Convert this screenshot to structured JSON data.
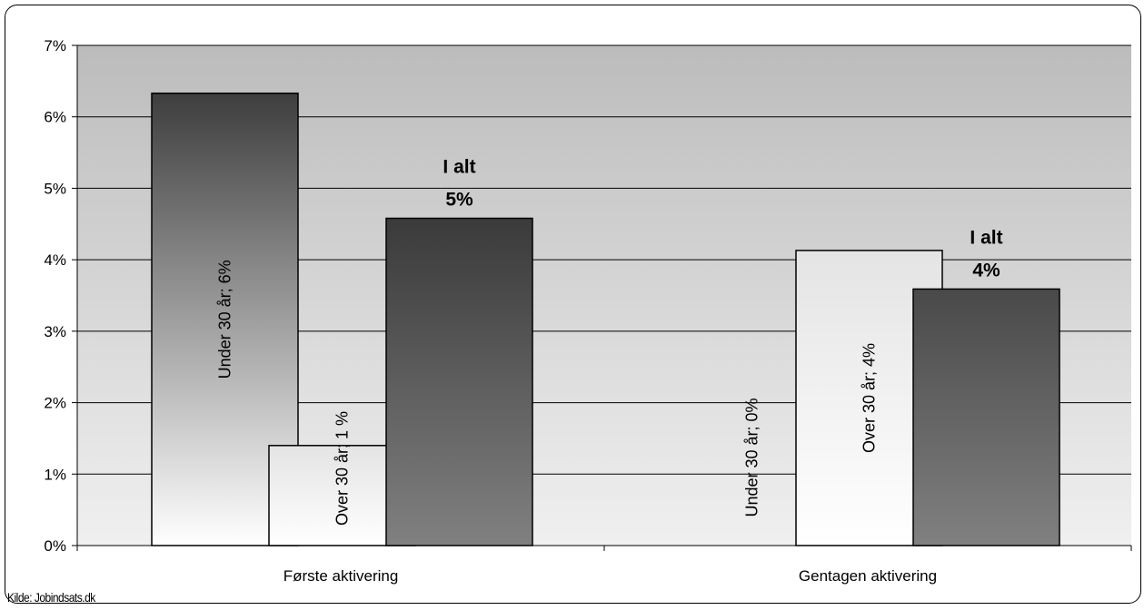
{
  "chart_data": {
    "type": "bar",
    "categories": [
      "Første aktivering",
      "Gentagen aktivering"
    ],
    "y_ticks": [
      "0%",
      "1%",
      "2%",
      "3%",
      "4%",
      "5%",
      "6%",
      "7%"
    ],
    "ylim": [
      0,
      7
    ],
    "grid": true,
    "series": [
      {
        "values": [
          6.33,
          0.0
        ],
        "labels": [
          "Under 30 år; 6%",
          "Under 30 år; 0%"
        ],
        "fill": "gradient-dark-to-light",
        "colors": {
          "top": "#3d3d3d",
          "bottom": "#ffffff"
        }
      },
      {
        "values": [
          1.4,
          4.13
        ],
        "labels": [
          "Over 30 år; 1 %",
          "Over 30 år; 4%"
        ],
        "fill": "light",
        "colors": {
          "top": "#e4e4e4",
          "bottom": "#ffffff"
        }
      },
      {
        "values": [
          4.58,
          3.59
        ],
        "labels": [
          "I alt\n5%",
          "I alt\n4%"
        ],
        "fill": "gradient-dark",
        "colors": {
          "top": "#3a3a3a",
          "bottom": "#808080"
        }
      }
    ],
    "plot_background": {
      "top": "#bcbcbc",
      "bottom": "#f0f0f0"
    },
    "source": "Kilde: Jobindsats.dk"
  }
}
